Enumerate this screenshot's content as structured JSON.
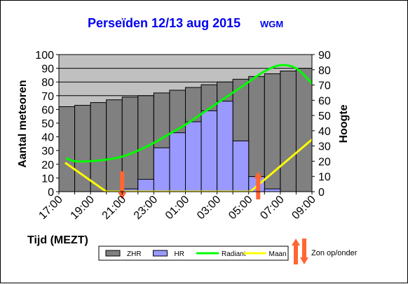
{
  "chart_data": {
    "type": "bar",
    "title": "Perseïden 12/13 aug 2015",
    "subtitle": "WGM",
    "xlabel": "Tijd (MEZT)",
    "ylabel": "Aantal meteoren",
    "y2label": "Hoogte",
    "ylim": [
      0,
      100
    ],
    "y2lim": [
      0,
      90
    ],
    "yticks": [
      "0",
      "10",
      "20",
      "30",
      "40",
      "50",
      "60",
      "70",
      "80",
      "90",
      "100"
    ],
    "y2ticks": [
      "0",
      "10",
      "20",
      "30",
      "40",
      "50",
      "60",
      "70",
      "80",
      "90"
    ],
    "xticks": [
      "17:00",
      "19:00",
      "21:00",
      "23:00",
      "01:00",
      "03:00",
      "05:00",
      "07:00",
      "09:00"
    ],
    "grid": true,
    "legend_position": "bottom",
    "series": [
      {
        "name": "ZHR",
        "kind": "bar",
        "color": "#808080",
        "values": [
          62,
          63,
          65,
          67,
          69,
          70,
          72,
          74,
          76,
          78,
          80,
          82,
          84,
          86,
          88,
          90
        ]
      },
      {
        "name": "HR",
        "kind": "bar",
        "color": "#9999ff",
        "values": [
          0,
          0,
          0,
          0,
          2,
          9,
          32,
          43,
          51,
          59,
          66,
          37,
          11,
          2,
          0,
          0
        ]
      },
      {
        "name": "Radiant",
        "kind": "line",
        "axis": "right",
        "color": "#00ff00",
        "x": [
          0,
          1,
          2,
          3,
          4,
          5,
          6,
          7,
          8,
          9,
          10,
          11,
          12,
          13,
          14,
          15,
          16
        ],
        "y": [
          22,
          20,
          20,
          21,
          23,
          27,
          32,
          38,
          44,
          51,
          58,
          65,
          72,
          79,
          83,
          81,
          71
        ]
      },
      {
        "name": "Maan",
        "kind": "line",
        "axis": "right",
        "color": "#ffff00",
        "x": [
          0.4,
          3.0,
          12.1,
          16.2
        ],
        "y": [
          19,
          0,
          0,
          36
        ]
      }
    ],
    "markers": [
      {
        "label": "Zon onder",
        "direction": "down",
        "x": 4.0
      },
      {
        "label": "Zon op",
        "direction": "up",
        "x": 12.6
      }
    ],
    "side_legend": "Zon op/onder",
    "colors": {
      "plot_bg": "#c0c0c0",
      "arrow": "#ff6633",
      "title": "#0000ee"
    }
  }
}
